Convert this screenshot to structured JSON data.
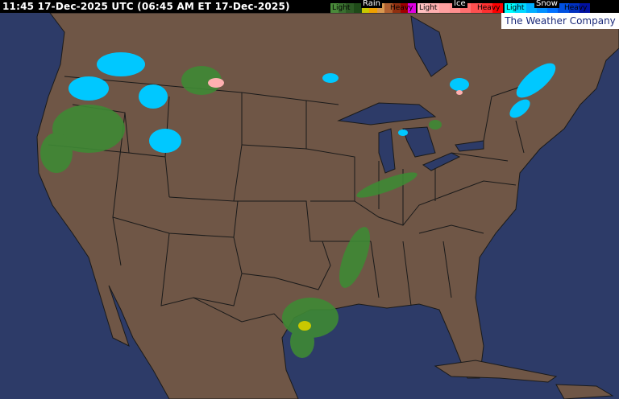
{
  "header": {
    "timestamp": "11:45 17-Dec-2025 UTC  (06:45 AM ET 17-Dec-2025)"
  },
  "legend": {
    "rain": {
      "title": "Rain",
      "light": "Light",
      "heavy": "Heavy",
      "colors": [
        "#4a8a3a",
        "#3a7030",
        "#2c5a24",
        "#1e4a18",
        "#c8c800",
        "#f0a000",
        "#d89850",
        "#b06030",
        "#903010",
        "#a00000",
        "#e000e0"
      ]
    },
    "ice": {
      "title": "Ice",
      "light": "Light",
      "heavy": "Heavy",
      "colors": [
        "#ffc0c0",
        "#ffb0b0",
        "#ffa0a0",
        "#ff9090",
        "#ff7070",
        "#ff5050",
        "#ff3030",
        "#ff0000"
      ]
    },
    "snow": {
      "title": "Snow",
      "light": "Light",
      "heavy": "Heavy",
      "colors": [
        "#00ffff",
        "#00d8ff",
        "#00b0ff",
        "#0090ff",
        "#0070ff",
        "#0050e0",
        "#0030c0",
        "#0010a0"
      ]
    }
  },
  "brand": {
    "logo_text": "The Weather Company"
  },
  "colors": {
    "ocean": "#2d3b68",
    "land": "#6f5646",
    "borders": "#1a1a1a"
  }
}
